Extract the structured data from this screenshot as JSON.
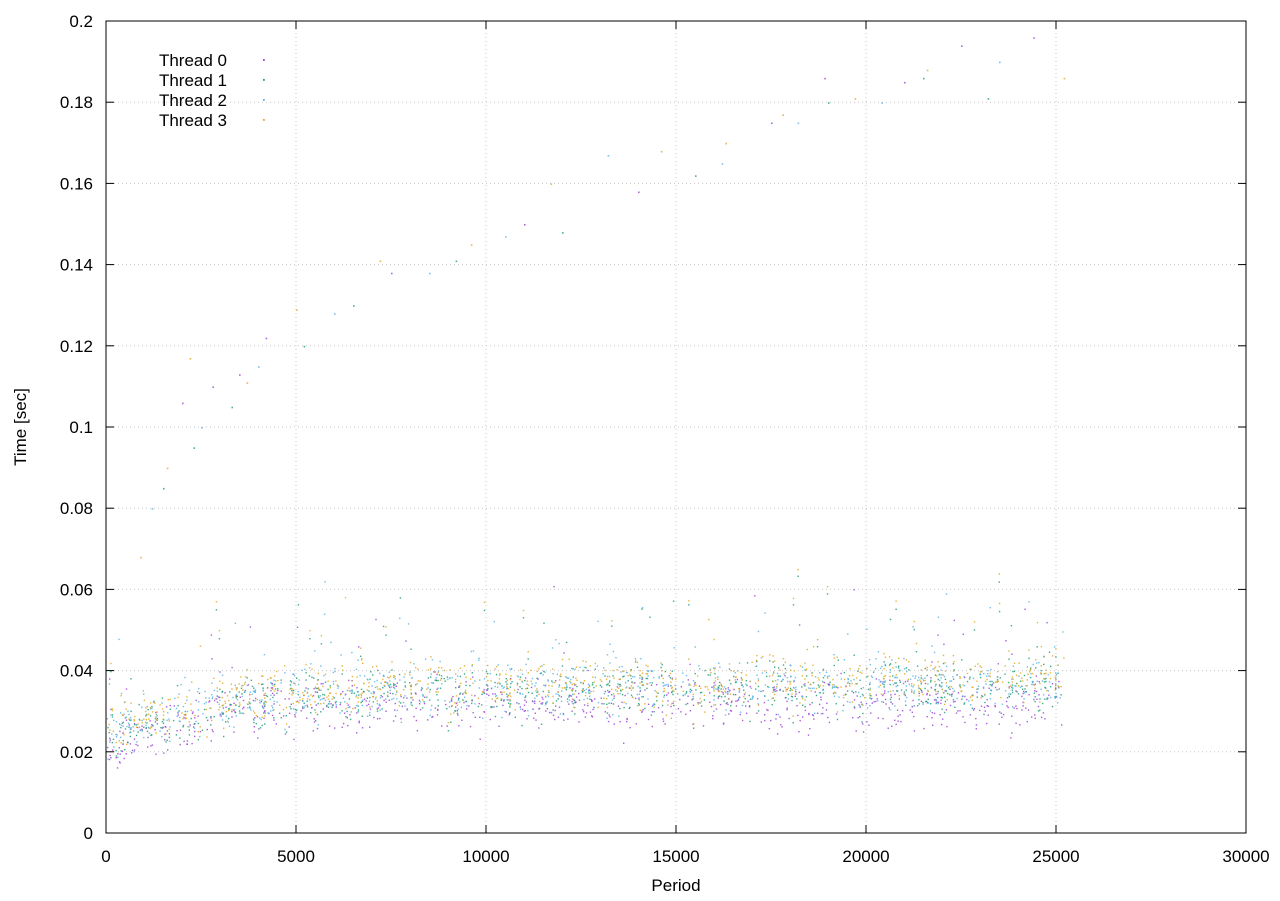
{
  "chart_data": {
    "type": "scatter",
    "title": "",
    "xlabel": "Period",
    "ylabel": "Time [sec]",
    "xlim": [
      0,
      30000
    ],
    "ylim": [
      0,
      0.2
    ],
    "x_ticks": [
      0,
      5000,
      10000,
      15000,
      20000,
      25000,
      30000
    ],
    "y_ticks": [
      0,
      0.02,
      0.04,
      0.06,
      0.08,
      0.1,
      0.12,
      0.14,
      0.16,
      0.18,
      0.2
    ],
    "x_tick_labels": [
      "0",
      "5000",
      "10000",
      "15000",
      "20000",
      "25000",
      "30000"
    ],
    "y_tick_labels": [
      "0",
      "0.02",
      "0.04",
      "0.06",
      "0.08",
      "0.1",
      "0.12",
      "0.14",
      "0.16",
      "0.18",
      "0.2"
    ],
    "grid": true,
    "legend_position": "top-left",
    "x_max_data": 25200,
    "series": [
      {
        "name": "Thread 0",
        "color": "#9b42d8",
        "profile": [
          [
            0,
            0.021
          ],
          [
            1000,
            0.024
          ],
          [
            3000,
            0.029
          ],
          [
            5000,
            0.031
          ],
          [
            10000,
            0.032
          ],
          [
            15000,
            0.032
          ],
          [
            20000,
            0.032
          ],
          [
            25200,
            0.032
          ]
        ],
        "outliers": [
          [
            2000,
            0.106
          ],
          [
            2800,
            0.11
          ],
          [
            3500,
            0.113
          ],
          [
            4200,
            0.122
          ],
          [
            7500,
            0.138
          ],
          [
            11000,
            0.15
          ],
          [
            14000,
            0.158
          ],
          [
            17500,
            0.175
          ],
          [
            18900,
            0.186
          ],
          [
            21000,
            0.185
          ],
          [
            22500,
            0.194
          ],
          [
            24400,
            0.196
          ]
        ]
      },
      {
        "name": "Thread 1",
        "color": "#1a9e77",
        "profile": [
          [
            0,
            0.024
          ],
          [
            1000,
            0.027
          ],
          [
            3000,
            0.031
          ],
          [
            5000,
            0.034
          ],
          [
            10000,
            0.035
          ],
          [
            15000,
            0.036
          ],
          [
            20000,
            0.036
          ],
          [
            25200,
            0.036
          ]
        ],
        "outliers": [
          [
            1500,
            0.085
          ],
          [
            2300,
            0.095
          ],
          [
            3300,
            0.105
          ],
          [
            5200,
            0.12
          ],
          [
            6500,
            0.13
          ],
          [
            9200,
            0.141
          ],
          [
            12000,
            0.148
          ],
          [
            15500,
            0.162
          ],
          [
            19000,
            0.18
          ],
          [
            21500,
            0.186
          ],
          [
            23200,
            0.181
          ]
        ]
      },
      {
        "name": "Thread 2",
        "color": "#56b4e9",
        "profile": [
          [
            0,
            0.025
          ],
          [
            1000,
            0.028
          ],
          [
            3000,
            0.032
          ],
          [
            5000,
            0.035
          ],
          [
            10000,
            0.036
          ],
          [
            15000,
            0.036
          ],
          [
            20000,
            0.037
          ],
          [
            25200,
            0.037
          ]
        ],
        "outliers": [
          [
            1200,
            0.08
          ],
          [
            2500,
            0.1
          ],
          [
            4000,
            0.115
          ],
          [
            6000,
            0.128
          ],
          [
            8500,
            0.138
          ],
          [
            10500,
            0.147
          ],
          [
            13200,
            0.167
          ],
          [
            16200,
            0.165
          ],
          [
            18200,
            0.175
          ],
          [
            20400,
            0.18
          ],
          [
            23500,
            0.19
          ]
        ]
      },
      {
        "name": "Thread 3",
        "color": "#e0a81f",
        "profile": [
          [
            0,
            0.026
          ],
          [
            1000,
            0.029
          ],
          [
            3000,
            0.033
          ],
          [
            5000,
            0.036
          ],
          [
            10000,
            0.037
          ],
          [
            15000,
            0.037
          ],
          [
            20000,
            0.038
          ],
          [
            25200,
            0.038
          ]
        ],
        "outliers": [
          [
            900,
            0.068
          ],
          [
            1600,
            0.09
          ],
          [
            2200,
            0.117
          ],
          [
            3700,
            0.111
          ],
          [
            5000,
            0.129
          ],
          [
            7200,
            0.141
          ],
          [
            9600,
            0.145
          ],
          [
            11700,
            0.16
          ],
          [
            14600,
            0.168
          ],
          [
            16300,
            0.17
          ],
          [
            17800,
            0.177
          ],
          [
            19700,
            0.181
          ],
          [
            21600,
            0.188
          ],
          [
            25200,
            0.186
          ]
        ]
      }
    ]
  }
}
